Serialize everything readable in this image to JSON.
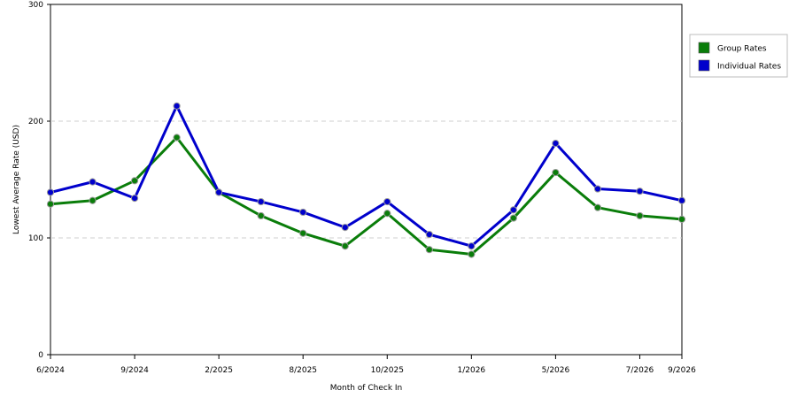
{
  "chart_data": {
    "type": "line",
    "xlabel": "Month of Check In",
    "ylabel": "Lowest Average Rate (USD)",
    "ylim": [
      0,
      300
    ],
    "yticks": [
      0,
      100,
      200,
      300
    ],
    "grid": "horizontal dashed",
    "legend_position": "right",
    "x_tick_labels": [
      "6/2024",
      "9/2024",
      "2/2025",
      "8/2025",
      "10/2025",
      "1/2026",
      "5/2026",
      "7/2026",
      "9/2026"
    ],
    "x_tick_points": [
      0,
      2,
      4,
      6,
      8,
      10,
      12,
      14,
      15
    ],
    "series": [
      {
        "name": "Group Rates",
        "color": "#0a7d0a",
        "values": [
          129,
          132,
          149,
          186,
          139,
          119,
          104,
          93,
          121,
          90,
          86,
          117,
          156,
          126,
          119,
          116
        ]
      },
      {
        "name": "Individual Rates",
        "color": "#0000cc",
        "values": [
          139,
          148,
          134,
          213,
          139,
          131,
          122,
          109,
          131,
          103,
          93,
          124,
          181,
          142,
          140,
          132
        ]
      }
    ]
  }
}
